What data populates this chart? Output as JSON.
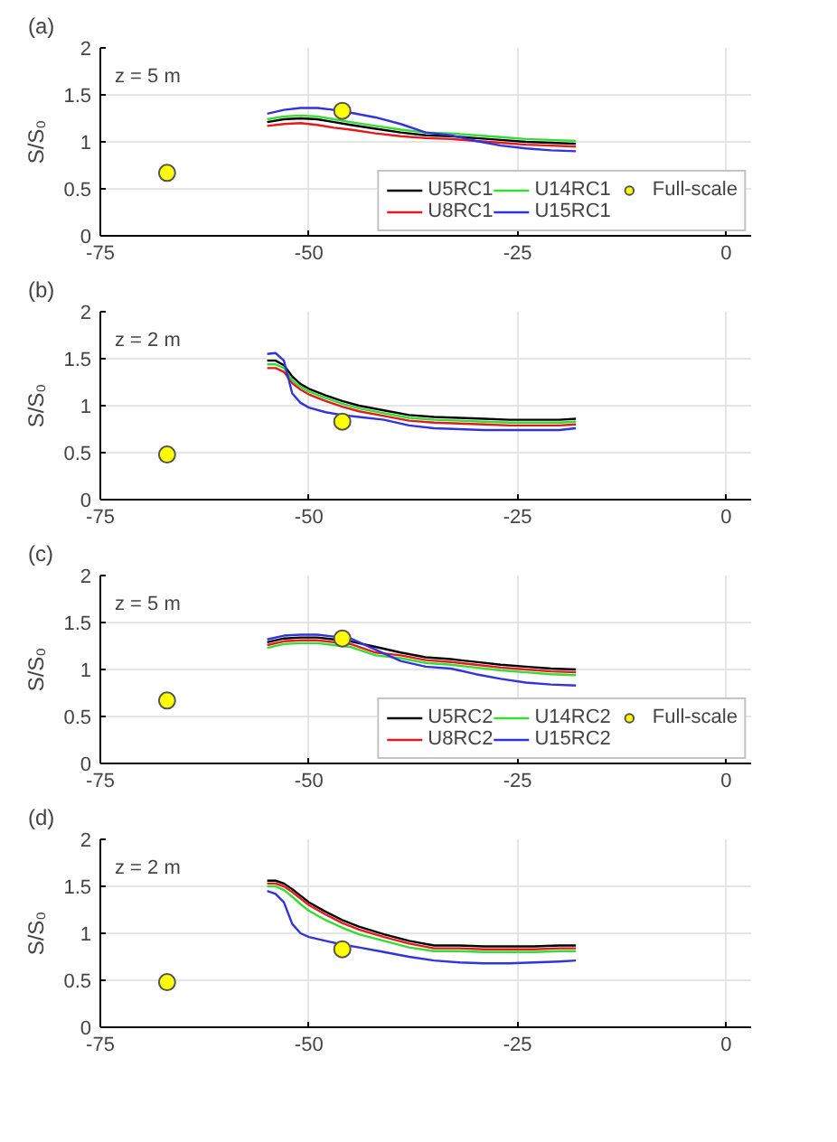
{
  "chart_data": [
    {
      "type": "line",
      "title": "(a)",
      "ylabel": "S/S₀",
      "annotations": [
        "z = 5 m"
      ],
      "xlim": [
        -75,
        3
      ],
      "xticks": [
        -75,
        -50,
        -25,
        0
      ],
      "ylim": [
        0,
        2
      ],
      "yticks": [
        0,
        0.5,
        1,
        1.5,
        2
      ],
      "grid": true,
      "legend": "bottom right",
      "series": [
        {
          "name": "U5RC1",
          "color": "#000000",
          "x": [
            -55,
            -53,
            -51,
            -49,
            -47,
            -45,
            -42,
            -39,
            -36,
            -33,
            -30,
            -27,
            -24,
            -21,
            -18
          ],
          "values": [
            1.21,
            1.24,
            1.25,
            1.24,
            1.21,
            1.18,
            1.14,
            1.1,
            1.07,
            1.06,
            1.04,
            1.02,
            1.0,
            0.99,
            0.98
          ]
        },
        {
          "name": "U8RC1",
          "color": "#e41a1c",
          "x": [
            -55,
            -53,
            -51,
            -49,
            -47,
            -45,
            -42,
            -39,
            -36,
            -33,
            -30,
            -27,
            -24,
            -21,
            -18
          ],
          "values": [
            1.17,
            1.19,
            1.2,
            1.18,
            1.15,
            1.13,
            1.09,
            1.06,
            1.04,
            1.03,
            1.01,
            0.99,
            0.97,
            0.96,
            0.95
          ]
        },
        {
          "name": "U14RC1",
          "color": "#33dd33",
          "x": [
            -55,
            -53,
            -51,
            -49,
            -47,
            -45,
            -42,
            -39,
            -36,
            -33,
            -30,
            -27,
            -24,
            -21,
            -18
          ],
          "values": [
            1.24,
            1.27,
            1.28,
            1.27,
            1.24,
            1.21,
            1.17,
            1.13,
            1.1,
            1.09,
            1.07,
            1.05,
            1.03,
            1.02,
            1.01
          ]
        },
        {
          "name": "U15RC1",
          "color": "#3333dd",
          "x": [
            -55,
            -53,
            -51,
            -49,
            -47,
            -45,
            -42,
            -39,
            -36,
            -33,
            -30,
            -27,
            -24,
            -21,
            -18
          ],
          "values": [
            1.3,
            1.34,
            1.36,
            1.36,
            1.34,
            1.31,
            1.26,
            1.19,
            1.1,
            1.07,
            1.01,
            0.96,
            0.93,
            0.91,
            0.9
          ]
        },
        {
          "name": "Full-scale",
          "type": "scatter",
          "marker": "circle",
          "color": "#ffff00",
          "x": [
            -67,
            -46
          ],
          "values": [
            0.67,
            1.33
          ]
        }
      ]
    },
    {
      "type": "line",
      "title": "(b)",
      "ylabel": "S/S₀",
      "annotations": [
        "z = 2 m"
      ],
      "xlim": [
        -75,
        3
      ],
      "xticks": [
        -75,
        -50,
        -25,
        0
      ],
      "ylim": [
        0,
        2
      ],
      "yticks": [
        0,
        0.5,
        1,
        1.5,
        2
      ],
      "grid": true,
      "series": [
        {
          "color": "#000000",
          "x": [
            -55,
            -54,
            -53,
            -52,
            -51,
            -50,
            -48,
            -46,
            -44,
            -41,
            -38,
            -35,
            -32,
            -29,
            -26,
            -23,
            -20,
            -18
          ],
          "values": [
            1.48,
            1.48,
            1.43,
            1.31,
            1.23,
            1.18,
            1.11,
            1.05,
            1.0,
            0.95,
            0.9,
            0.88,
            0.87,
            0.86,
            0.85,
            0.85,
            0.85,
            0.86
          ]
        },
        {
          "color": "#e41a1c",
          "x": [
            -55,
            -54,
            -53,
            -52,
            -51,
            -50,
            -48,
            -46,
            -44,
            -41,
            -38,
            -35,
            -32,
            -29,
            -26,
            -23,
            -20,
            -18
          ],
          "values": [
            1.4,
            1.4,
            1.36,
            1.24,
            1.17,
            1.12,
            1.05,
            0.99,
            0.94,
            0.89,
            0.84,
            0.82,
            0.81,
            0.8,
            0.79,
            0.79,
            0.79,
            0.8
          ]
        },
        {
          "color": "#33dd33",
          "x": [
            -55,
            -54,
            -53,
            -52,
            -51,
            -50,
            -48,
            -46,
            -44,
            -41,
            -38,
            -35,
            -32,
            -29,
            -26,
            -23,
            -20,
            -18
          ],
          "values": [
            1.44,
            1.44,
            1.4,
            1.27,
            1.2,
            1.15,
            1.08,
            1.02,
            0.97,
            0.92,
            0.87,
            0.85,
            0.84,
            0.83,
            0.82,
            0.82,
            0.82,
            0.83
          ]
        },
        {
          "color": "#3333dd",
          "x": [
            -55,
            -54,
            -53,
            -52,
            -51,
            -50,
            -48,
            -46,
            -44,
            -41,
            -38,
            -35,
            -32,
            -29,
            -26,
            -23,
            -20,
            -18
          ],
          "values": [
            1.55,
            1.56,
            1.48,
            1.13,
            1.03,
            0.98,
            0.93,
            0.9,
            0.88,
            0.85,
            0.79,
            0.76,
            0.75,
            0.74,
            0.74,
            0.74,
            0.74,
            0.76
          ]
        },
        {
          "type": "scatter",
          "marker": "circle",
          "color": "#ffff00",
          "x": [
            -67,
            -46
          ],
          "values": [
            0.48,
            0.83
          ]
        }
      ]
    },
    {
      "type": "line",
      "title": "(c)",
      "ylabel": "S/S₀",
      "annotations": [
        "z = 5 m"
      ],
      "xlim": [
        -75,
        3
      ],
      "xticks": [
        -75,
        -50,
        -25,
        0
      ],
      "ylim": [
        0,
        2
      ],
      "yticks": [
        0,
        0.5,
        1,
        1.5,
        2
      ],
      "grid": true,
      "legend": "bottom right",
      "series": [
        {
          "name": "U5RC2",
          "color": "#000000",
          "x": [
            -55,
            -53,
            -51,
            -49,
            -47,
            -45,
            -42,
            -39,
            -36,
            -33,
            -30,
            -27,
            -24,
            -21,
            -18
          ],
          "values": [
            1.29,
            1.33,
            1.34,
            1.34,
            1.32,
            1.3,
            1.24,
            1.18,
            1.13,
            1.11,
            1.08,
            1.05,
            1.03,
            1.01,
            1.0
          ]
        },
        {
          "name": "U8RC2",
          "color": "#e41a1c",
          "x": [
            -55,
            -53,
            -51,
            -49,
            -47,
            -45,
            -42,
            -39,
            -36,
            -33,
            -30,
            -27,
            -24,
            -21,
            -18
          ],
          "values": [
            1.26,
            1.3,
            1.31,
            1.31,
            1.29,
            1.27,
            1.18,
            1.15,
            1.1,
            1.08,
            1.05,
            1.02,
            1.0,
            0.98,
            0.97
          ]
        },
        {
          "name": "U14RC2",
          "color": "#33dd33",
          "x": [
            -55,
            -53,
            -51,
            -49,
            -47,
            -45,
            -42,
            -39,
            -36,
            -33,
            -30,
            -27,
            -24,
            -21,
            -18
          ],
          "values": [
            1.23,
            1.27,
            1.28,
            1.28,
            1.26,
            1.24,
            1.15,
            1.12,
            1.07,
            1.05,
            1.02,
            0.99,
            0.97,
            0.95,
            0.94
          ]
        },
        {
          "name": "U15RC2",
          "color": "#3333dd",
          "x": [
            -55,
            -53,
            -51,
            -49,
            -47,
            -45,
            -42,
            -39,
            -36,
            -33,
            -30,
            -27,
            -24,
            -21,
            -18
          ],
          "values": [
            1.32,
            1.36,
            1.37,
            1.37,
            1.35,
            1.33,
            1.21,
            1.09,
            1.03,
            1.01,
            0.95,
            0.9,
            0.86,
            0.84,
            0.83
          ]
        },
        {
          "name": "Full-scale",
          "type": "scatter",
          "marker": "circle",
          "color": "#ffff00",
          "x": [
            -67,
            -46
          ],
          "values": [
            0.67,
            1.33
          ]
        }
      ]
    },
    {
      "type": "line",
      "title": "(d)",
      "ylabel": "S/S₀",
      "annotations": [
        "z = 2 m"
      ],
      "xlim": [
        -75,
        3
      ],
      "xticks": [
        -75,
        -50,
        -25,
        0
      ],
      "ylim": [
        0,
        2
      ],
      "yticks": [
        0,
        0.5,
        1,
        1.5,
        2
      ],
      "grid": true,
      "series": [
        {
          "color": "#000000",
          "x": [
            -55,
            -54,
            -53,
            -52,
            -51,
            -50,
            -48,
            -46,
            -44,
            -41,
            -38,
            -35,
            -32,
            -29,
            -26,
            -23,
            -20,
            -18
          ],
          "values": [
            1.56,
            1.56,
            1.53,
            1.47,
            1.4,
            1.33,
            1.23,
            1.14,
            1.07,
            0.99,
            0.92,
            0.87,
            0.87,
            0.86,
            0.86,
            0.86,
            0.87,
            0.87
          ]
        },
        {
          "color": "#e41a1c",
          "x": [
            -55,
            -54,
            -53,
            -52,
            -51,
            -50,
            -48,
            -46,
            -44,
            -41,
            -38,
            -35,
            -32,
            -29,
            -26,
            -23,
            -20,
            -18
          ],
          "values": [
            1.53,
            1.53,
            1.5,
            1.44,
            1.37,
            1.3,
            1.2,
            1.11,
            1.04,
            0.96,
            0.89,
            0.84,
            0.84,
            0.83,
            0.83,
            0.83,
            0.84,
            0.84
          ]
        },
        {
          "color": "#33dd33",
          "x": [
            -55,
            -54,
            -53,
            -52,
            -51,
            -50,
            -48,
            -46,
            -44,
            -41,
            -38,
            -35,
            -32,
            -29,
            -26,
            -23,
            -20,
            -18
          ],
          "values": [
            1.5,
            1.5,
            1.46,
            1.39,
            1.31,
            1.24,
            1.14,
            1.06,
            0.99,
            0.92,
            0.85,
            0.81,
            0.81,
            0.8,
            0.8,
            0.8,
            0.81,
            0.81
          ]
        },
        {
          "color": "#3333dd",
          "x": [
            -55,
            -54,
            -53,
            -52,
            -51,
            -50,
            -48,
            -46,
            -44,
            -41,
            -38,
            -35,
            -32,
            -29,
            -26,
            -23,
            -20,
            -18
          ],
          "values": [
            1.45,
            1.42,
            1.33,
            1.1,
            1.0,
            0.96,
            0.92,
            0.88,
            0.85,
            0.8,
            0.75,
            0.71,
            0.69,
            0.68,
            0.68,
            0.69,
            0.7,
            0.71
          ]
        },
        {
          "type": "scatter",
          "marker": "circle",
          "color": "#ffff00",
          "x": [
            -67,
            -46
          ],
          "values": [
            0.48,
            0.83
          ]
        }
      ]
    }
  ]
}
